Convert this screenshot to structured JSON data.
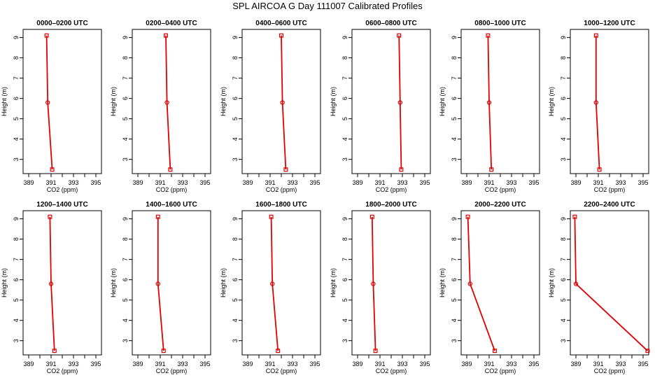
{
  "title": "SPL AIRCOA G  Day 111007  Calibrated Profiles",
  "chart_data": {
    "type": "line",
    "xlabel": "CO2 (ppm)",
    "ylabel": "Height (m)",
    "xlim": [
      388.5,
      395.5
    ],
    "ylim": [
      2.3,
      9.4
    ],
    "xticks": [
      "389",
      "391",
      "393",
      "395"
    ],
    "xminor": [
      390,
      392,
      394
    ],
    "yticks": [
      "3",
      "4",
      "5",
      "6",
      "7",
      "8",
      "9"
    ],
    "line_color": "#e00000",
    "panels": [
      {
        "title": "0000–0200 UTC",
        "x": [
          390.6,
          390.7,
          391.1
        ],
        "y": [
          9.1,
          5.8,
          2.5
        ]
      },
      {
        "title": "0200–0400 UTC",
        "x": [
          391.5,
          391.6,
          391.9
        ],
        "y": [
          9.1,
          5.8,
          2.5
        ]
      },
      {
        "title": "0400–0600 UTC",
        "x": [
          392.0,
          392.1,
          392.4
        ],
        "y": [
          9.1,
          5.8,
          2.5
        ]
      },
      {
        "title": "0600–0800 UTC",
        "x": [
          392.7,
          392.8,
          392.9
        ],
        "y": [
          9.1,
          5.8,
          2.5
        ]
      },
      {
        "title": "0800–1000 UTC",
        "x": [
          390.9,
          391.0,
          391.2
        ],
        "y": [
          9.1,
          5.8,
          2.5
        ]
      },
      {
        "title": "1000–1200 UTC",
        "x": [
          390.8,
          390.8,
          391.1
        ],
        "y": [
          9.1,
          5.8,
          2.5
        ]
      },
      {
        "title": "1200–1400 UTC",
        "x": [
          390.9,
          391.0,
          391.3
        ],
        "y": [
          9.1,
          5.8,
          2.5
        ]
      },
      {
        "title": "1400–1600 UTC",
        "x": [
          390.8,
          390.8,
          391.3
        ],
        "y": [
          9.1,
          5.8,
          2.5
        ]
      },
      {
        "title": "1600–1800 UTC",
        "x": [
          391.1,
          391.2,
          391.7
        ],
        "y": [
          9.1,
          5.8,
          2.5
        ]
      },
      {
        "title": "1800–2000 UTC",
        "x": [
          390.3,
          390.4,
          390.6
        ],
        "y": [
          9.1,
          5.8,
          2.5
        ]
      },
      {
        "title": "2000–2200 UTC",
        "x": [
          389.1,
          389.3,
          391.5
        ],
        "y": [
          9.1,
          5.8,
          2.5
        ]
      },
      {
        "title": "2200–2400 UTC",
        "x": [
          388.9,
          389.0,
          395.4
        ],
        "y": [
          9.1,
          5.8,
          2.5
        ]
      }
    ]
  }
}
